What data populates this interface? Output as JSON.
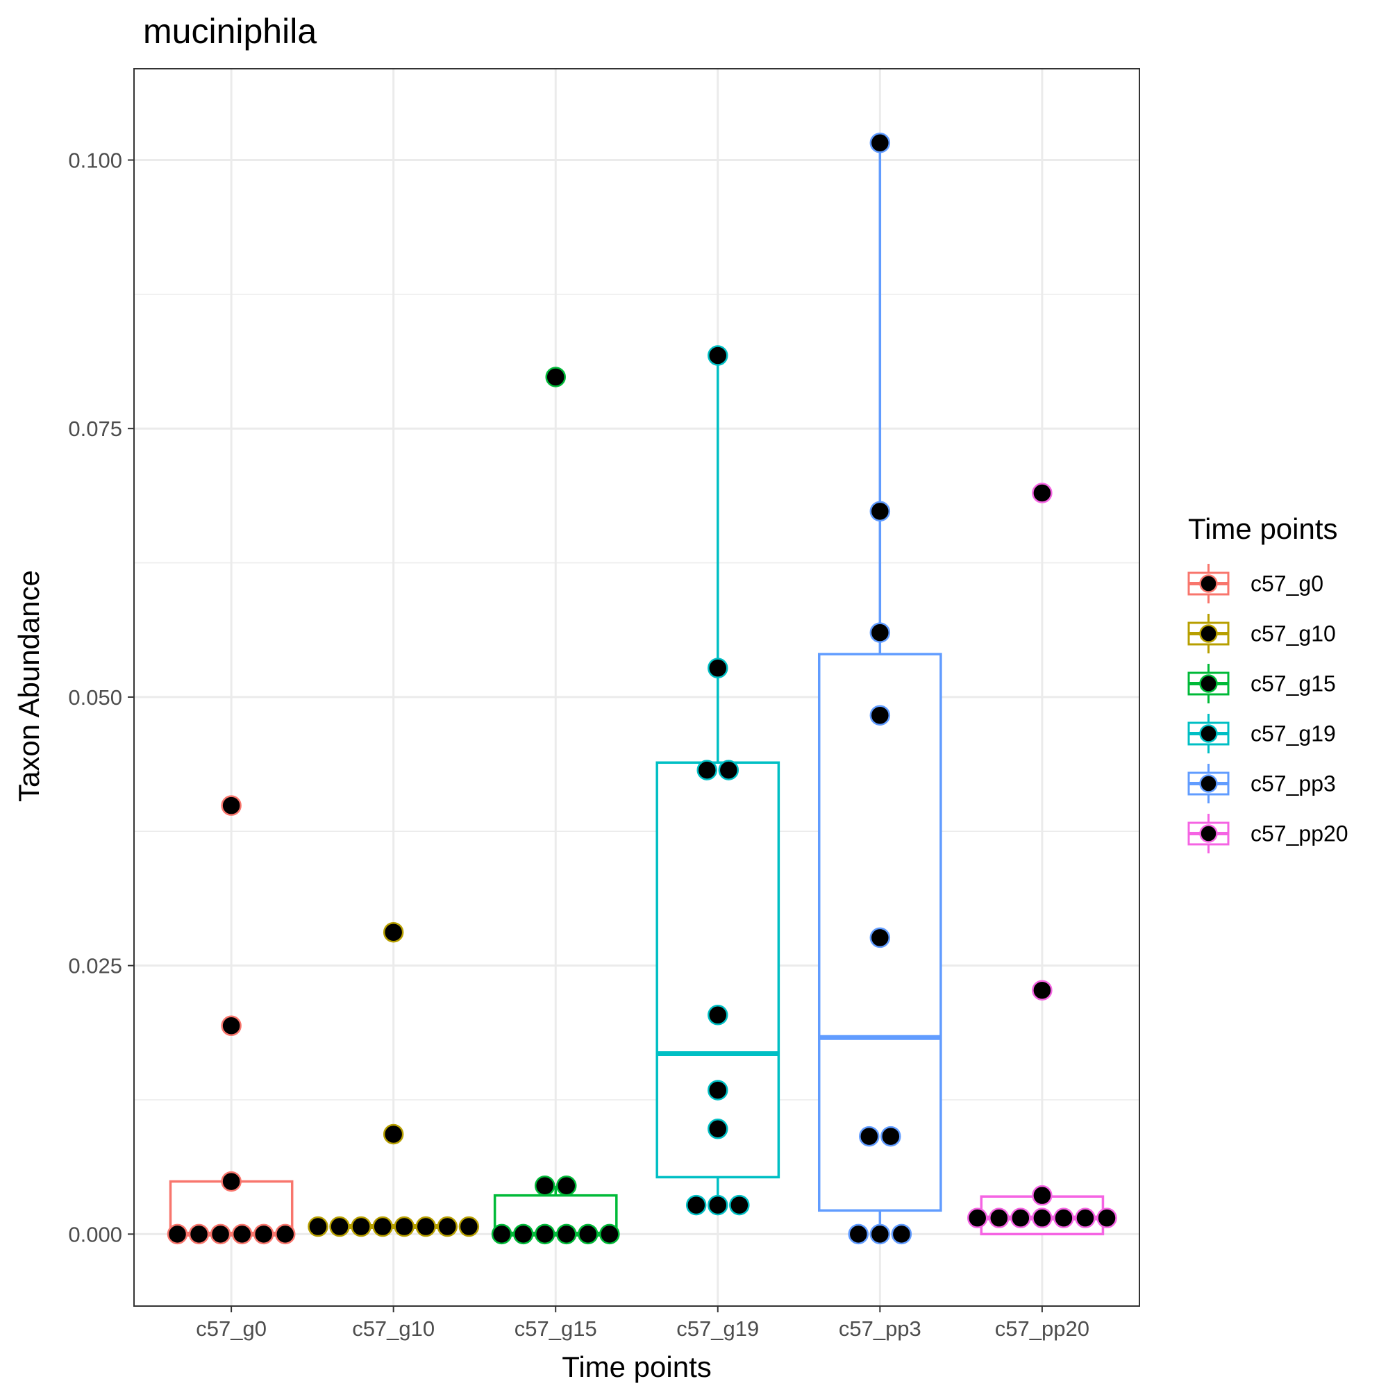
{
  "chart_data": {
    "type": "box",
    "title": "muciniphila",
    "xlabel": "Time points",
    "ylabel": "Taxon Abundance",
    "ylim": [
      -0.0067,
      0.1085
    ],
    "yticks": [
      0.0,
      0.025,
      0.05,
      0.075,
      0.1
    ],
    "ytick_labels": [
      "0.000",
      "0.025",
      "0.050",
      "0.075",
      "0.100"
    ],
    "grid": true,
    "legend": {
      "title": "Time points",
      "placement": "right"
    },
    "categories": [
      "c57_g0",
      "c57_g10",
      "c57_g15",
      "c57_g19",
      "c57_pp3",
      "c57_pp20"
    ],
    "series": [
      {
        "name": "c57_g0",
        "color": "#F8766D",
        "box": {
          "q1": 0.0,
          "median": 0.0,
          "q3": 0.0049,
          "whisker_low": 0.0,
          "whisker_high": 0.0049
        },
        "points": [
          0.0399,
          0.0194,
          0.0049,
          0.0,
          0.0,
          0.0,
          0.0,
          0.0,
          0.0
        ]
      },
      {
        "name": "c57_g10",
        "color": "#B79F00",
        "box": {
          "q1": 0.0006,
          "median": 0.0007,
          "q3": 0.0008,
          "whisker_low": 0.0006,
          "whisker_high": 0.0008
        },
        "points": [
          0.0281,
          0.0093,
          0.0007,
          0.0007,
          0.0007,
          0.0007,
          0.0007,
          0.0007,
          0.0007,
          0.0007
        ]
      },
      {
        "name": "c57_g15",
        "color": "#00BA38",
        "box": {
          "q1": 0.0,
          "median": 0.0,
          "q3": 0.0036,
          "whisker_low": 0.0,
          "whisker_high": 0.0045
        },
        "points": [
          0.0798,
          0.0045,
          0.0045,
          0.0,
          0.0,
          0.0,
          0.0,
          0.0,
          0.0
        ]
      },
      {
        "name": "c57_g19",
        "color": "#00BFC4",
        "box": {
          "q1": 0.0053,
          "median": 0.0168,
          "q3": 0.0439,
          "whisker_low": 0.0027,
          "whisker_high": 0.0818
        },
        "points": [
          0.0818,
          0.0527,
          0.0432,
          0.0432,
          0.0204,
          0.0134,
          0.0098,
          0.0027,
          0.0027,
          0.0027
        ]
      },
      {
        "name": "c57_pp3",
        "color": "#619CFF",
        "box": {
          "q1": 0.0022,
          "median": 0.0183,
          "q3": 0.054,
          "whisker_low": 0.0,
          "whisker_high": 0.1016
        },
        "points": [
          0.1016,
          0.0673,
          0.056,
          0.0483,
          0.0276,
          0.0091,
          0.0091,
          0.0,
          0.0,
          0.0
        ]
      },
      {
        "name": "c57_pp20",
        "color": "#F564E3",
        "box": {
          "q1": 0.0,
          "median": 0.0015,
          "q3": 0.0035,
          "whisker_low": 0.0,
          "whisker_high": 0.0035
        },
        "points": [
          0.069,
          0.0227,
          0.0036,
          0.0015,
          0.0015,
          0.0015,
          0.0015,
          0.0015,
          0.0015,
          0.0015
        ]
      }
    ]
  }
}
